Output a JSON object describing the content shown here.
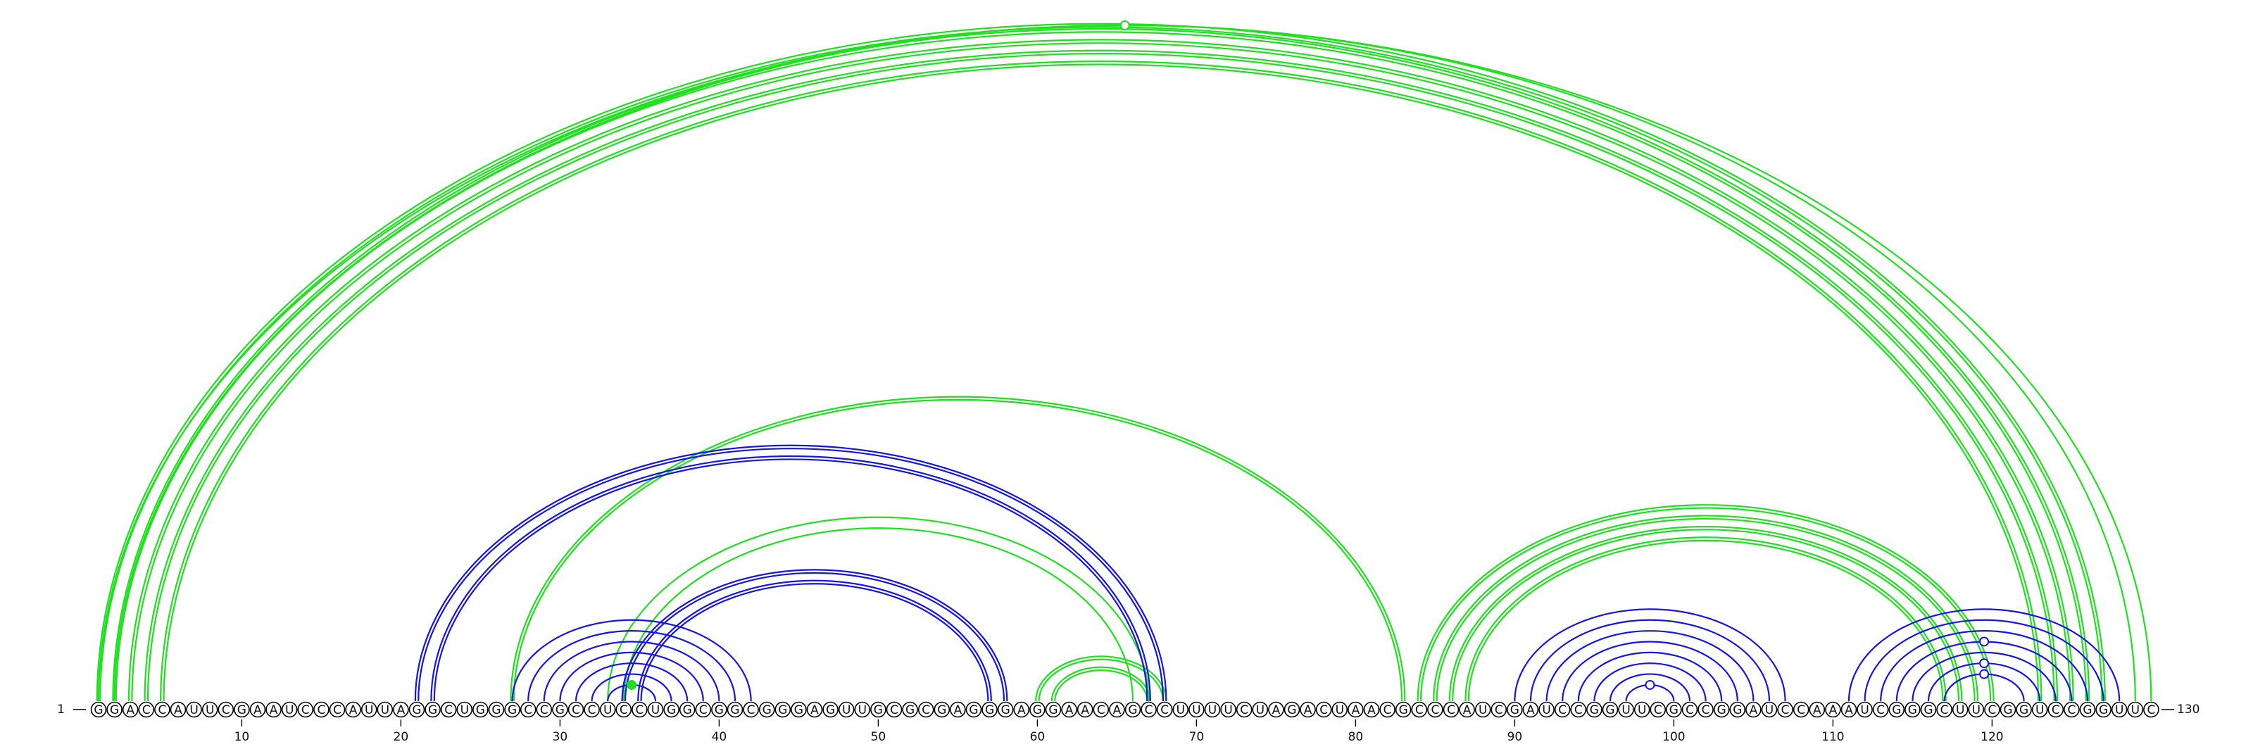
{
  "sequence": "GGACCAUUCGAAUCCCAUUAGGCUGGGCCGCCUCCUGGCGGCGGGAGUUGCGCGAGGGAGGAACAGCCUUUUCUAGACUAACGCCCAUCGAUCCGGUUCGCCGGAUCCAAAUCGGGCUUCGGUCCGGUUC",
  "start_label": "1",
  "end_label": "130",
  "ticks": [
    10,
    20,
    30,
    40,
    50,
    60,
    70,
    80,
    90,
    100,
    110,
    120
  ],
  "colors": {
    "green": "#1fe01f",
    "blue": "#1414e6",
    "line": "#000000"
  },
  "chart_data": {
    "type": "arc-diagram",
    "sequence_length": 130,
    "arc_groups": [
      {
        "color": "green",
        "lines": 2,
        "pairs": [
          [
            1,
            127
          ],
          [
            2,
            126
          ],
          [
            3,
            125
          ],
          [
            4,
            124
          ],
          [
            5,
            123
          ]
        ]
      },
      {
        "color": "green",
        "lines": 1,
        "pairs": [
          [
            1,
            130
          ],
          [
            2,
            129
          ]
        ]
      },
      {
        "color": "green",
        "lines": 2,
        "pairs": [
          [
            27,
            83
          ]
        ]
      },
      {
        "color": "green",
        "lines": 1,
        "pairs": [
          [
            33,
            67
          ],
          [
            34,
            66
          ]
        ]
      },
      {
        "color": "green",
        "lines": 2,
        "pairs": [
          [
            60,
            68
          ],
          [
            61,
            67
          ]
        ]
      },
      {
        "color": "green",
        "lines": 2,
        "pairs": [
          [
            84,
            120
          ],
          [
            85,
            119
          ],
          [
            86,
            118
          ],
          [
            87,
            117
          ]
        ]
      },
      {
        "color": "blue",
        "lines": 2,
        "pairs": [
          [
            21,
            68
          ],
          [
            22,
            67
          ]
        ]
      },
      {
        "color": "blue",
        "lines": 1,
        "pairs": [
          [
            27,
            42
          ],
          [
            28,
            41
          ],
          [
            29,
            40
          ],
          [
            30,
            39
          ],
          [
            31,
            38
          ],
          [
            32,
            37
          ],
          [
            33,
            36
          ]
        ]
      },
      {
        "color": "blue",
        "lines": 2,
        "pairs": [
          [
            34,
            58
          ],
          [
            35,
            57
          ]
        ]
      },
      {
        "color": "blue",
        "lines": 1,
        "pairs": [
          [
            90,
            107
          ],
          [
            91,
            106
          ],
          [
            92,
            105
          ],
          [
            93,
            104
          ],
          [
            94,
            103
          ],
          [
            95,
            102
          ],
          [
            96,
            101
          ],
          [
            97,
            100
          ]
        ]
      },
      {
        "color": "blue",
        "lines": 1,
        "pairs": [
          [
            111,
            128
          ],
          [
            112,
            127
          ],
          [
            113,
            126
          ],
          [
            114,
            125
          ],
          [
            115,
            124
          ],
          [
            116,
            123
          ],
          [
            117,
            122
          ]
        ]
      }
    ],
    "markers": [
      {
        "color": "green",
        "position": 65.5,
        "arc": [
          1,
          130
        ],
        "filled": false
      },
      {
        "color": "green",
        "position": 34.5,
        "arc": [
          33,
          36
        ],
        "filled": true
      },
      {
        "color": "blue",
        "position": 98.5,
        "arc": [
          97,
          100
        ],
        "filled": false
      },
      {
        "color": "blue",
        "position": 119.5,
        "arc": [
          117,
          122
        ],
        "filled": false
      },
      {
        "color": "blue",
        "position": 119.5,
        "arc": [
          116,
          123
        ],
        "filled": false
      },
      {
        "color": "blue",
        "position": 119.5,
        "arc": [
          114,
          125
        ],
        "filled": false
      }
    ]
  }
}
